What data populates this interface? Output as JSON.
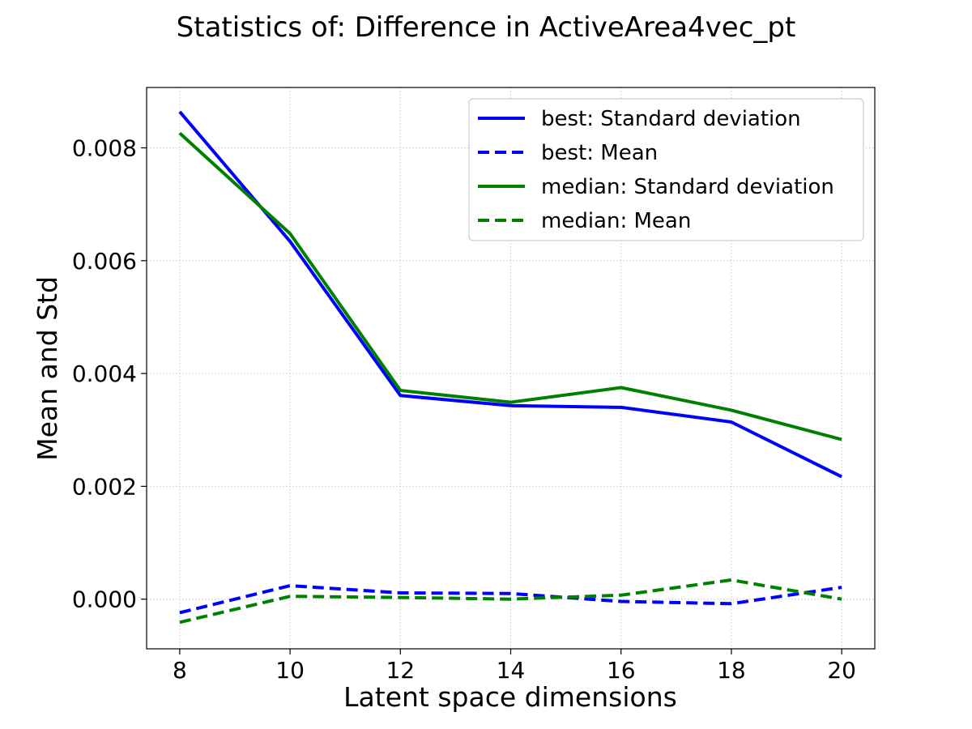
{
  "chart_data": {
    "type": "line",
    "title": "Statistics of: Difference in ActiveArea4vec_pt",
    "xlabel": "Latent space dimensions",
    "ylabel": "Mean and Std",
    "x": [
      8,
      10,
      12,
      14,
      16,
      18,
      20
    ],
    "xticks": [
      8,
      10,
      12,
      14,
      16,
      18,
      20
    ],
    "yticks": [
      0.0,
      0.002,
      0.004,
      0.006,
      0.008
    ],
    "ytick_labels": [
      "0.000",
      "0.002",
      "0.004",
      "0.006",
      "0.008"
    ],
    "xlim": [
      7.4,
      20.6
    ],
    "ylim": [
      -0.00088,
      0.00907
    ],
    "grid": true,
    "legend_position": "top-right",
    "series": [
      {
        "name": "best: Standard deviation",
        "color": "#0000ff",
        "style": "solid",
        "values": [
          0.00864,
          0.00634,
          0.00361,
          0.00343,
          0.0034,
          0.00314,
          0.00217
        ]
      },
      {
        "name": "best: Mean",
        "color": "#0000ff",
        "style": "dashed",
        "values": [
          -0.00024,
          0.00024,
          0.00011,
          0.0001,
          -4e-05,
          -8e-05,
          0.00021
        ]
      },
      {
        "name": "median: Standard deviation",
        "color": "#008000",
        "style": "solid",
        "values": [
          0.00826,
          0.00648,
          0.0037,
          0.00349,
          0.00375,
          0.00335,
          0.00283
        ]
      },
      {
        "name": "median: Mean",
        "color": "#008000",
        "style": "dashed",
        "values": [
          -0.00041,
          5e-05,
          3e-05,
          0.0,
          7e-05,
          0.00034,
          0.0
        ]
      }
    ]
  }
}
